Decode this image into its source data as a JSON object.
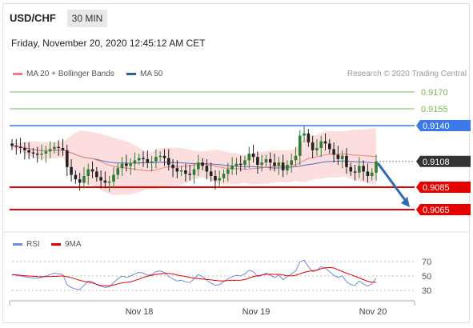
{
  "header": {
    "symbol": "USD/CHF",
    "timeframe": "30 MIN",
    "datetime": "Friday, November 20, 2020 12:45:12 AM CET"
  },
  "legend_main": [
    {
      "label": "MA 20 + Bollinger Bands",
      "color": "#f08080"
    },
    {
      "label": "MA 50",
      "color": "#2f5fa8"
    }
  ],
  "credit": "Research © 2020 Trading Central",
  "colors": {
    "bullish": "#2e7d32",
    "bearish": "#222222",
    "band": "#fbd3d3",
    "ma20": "#f08080",
    "ma50": "#5070b8",
    "support": "#e60000",
    "resistance": "#3c78e6",
    "target": "#7cba4a",
    "arrow": "#2f6ab0",
    "rsi": "#6d8fd6",
    "ma9": "#e60000"
  },
  "chart_data": [
    {
      "type": "candlestick",
      "ylim": [
        0.905,
        0.9175
      ],
      "x_ticks": [
        "Nov 18",
        "Nov 19",
        "Nov 20"
      ],
      "levels": [
        {
          "label": "0.9170",
          "value": 0.917,
          "kind": "target"
        },
        {
          "label": "0.9155",
          "value": 0.9155,
          "kind": "target"
        },
        {
          "label": "0.9140",
          "value": 0.914,
          "kind": "resistance"
        },
        {
          "label": "0.9108",
          "value": 0.9108,
          "kind": "last"
        },
        {
          "label": "0.9085",
          "value": 0.9085,
          "kind": "support"
        },
        {
          "label": "0.9065",
          "value": 0.9065,
          "kind": "support"
        }
      ],
      "arrow": {
        "from": 0.9108,
        "to": 0.9065
      },
      "close": [
        0.9122,
        0.9121,
        0.912,
        0.9118,
        0.9116,
        0.9115,
        0.9114,
        0.9115,
        0.9117,
        0.9119,
        0.9121,
        0.912,
        0.9118,
        0.9103,
        0.9096,
        0.9092,
        0.9089,
        0.9095,
        0.9101,
        0.9099,
        0.9094,
        0.9091,
        0.9089,
        0.909,
        0.9096,
        0.9102,
        0.9106,
        0.9104,
        0.9106,
        0.9109,
        0.9111,
        0.911,
        0.9107,
        0.9108,
        0.9112,
        0.9113,
        0.9111,
        0.9105,
        0.9102,
        0.9099,
        0.91,
        0.9097,
        0.9096,
        0.9101,
        0.9107,
        0.9104,
        0.9099,
        0.9095,
        0.9091,
        0.9093,
        0.9097,
        0.9101,
        0.9104,
        0.9106,
        0.9105,
        0.9109,
        0.9115,
        0.9112,
        0.9105,
        0.9107,
        0.911,
        0.9107,
        0.9104,
        0.9107,
        0.91,
        0.9105,
        0.9109,
        0.9113,
        0.9131,
        0.9133,
        0.9125,
        0.9118,
        0.912,
        0.9126,
        0.9124,
        0.9119,
        0.9114,
        0.911,
        0.9113,
        0.9103,
        0.9099,
        0.9098,
        0.9104,
        0.9099,
        0.9095,
        0.9098,
        0.9108
      ],
      "rsi_levels": [
        70,
        50,
        30
      ],
      "rsi": [
        52,
        51,
        50,
        49,
        48,
        47,
        47,
        48,
        50,
        52,
        54,
        53,
        52,
        38,
        34,
        32,
        31,
        37,
        43,
        42,
        38,
        36,
        34,
        35,
        41,
        46,
        50,
        48,
        50,
        53,
        55,
        54,
        51,
        52,
        56,
        57,
        55,
        49,
        46,
        43,
        44,
        42,
        41,
        46,
        52,
        49,
        44,
        40,
        37,
        38,
        42,
        46,
        49,
        51,
        50,
        53,
        58,
        56,
        49,
        51,
        54,
        51,
        48,
        51,
        45,
        49,
        53,
        57,
        70,
        72,
        63,
        56,
        58,
        63,
        61,
        56,
        51,
        48,
        50,
        42,
        38,
        37,
        43,
        39,
        36,
        39,
        47
      ],
      "legend": [
        "RSI",
        "9MA"
      ]
    }
  ]
}
